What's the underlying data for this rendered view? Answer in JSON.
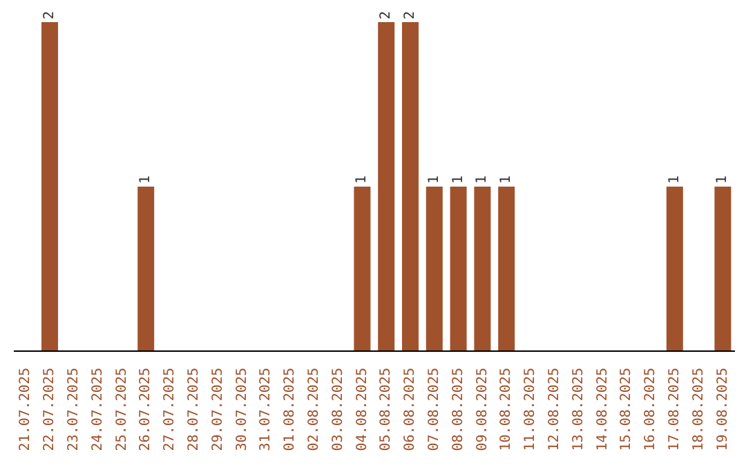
{
  "chart_data": {
    "type": "bar",
    "categories": [
      "21.07.2025",
      "22.07.2025",
      "23.07.2025",
      "24.07.2025",
      "25.07.2025",
      "26.07.2025",
      "27.07.2025",
      "28.07.2025",
      "29.07.2025",
      "30.07.2025",
      "31.07.2025",
      "01.08.2025",
      "02.08.2025",
      "03.08.2025",
      "04.08.2025",
      "05.08.2025",
      "06.08.2025",
      "07.08.2025",
      "08.08.2025",
      "09.08.2025",
      "10.08.2025",
      "11.08.2025",
      "12.08.2025",
      "13.08.2025",
      "14.08.2025",
      "15.08.2025",
      "16.08.2025",
      "17.08.2025",
      "18.08.2025",
      "19.08.2025"
    ],
    "values": [
      0,
      2,
      0,
      0,
      0,
      1,
      0,
      0,
      0,
      0,
      0,
      0,
      0,
      0,
      1,
      2,
      2,
      1,
      1,
      1,
      1,
      0,
      0,
      0,
      0,
      0,
      0,
      1,
      0,
      1
    ],
    "value_labels": [
      null,
      "2",
      null,
      null,
      null,
      "1",
      null,
      null,
      null,
      null,
      null,
      null,
      null,
      null,
      "1",
      "2",
      "2",
      "1",
      "1",
      "1",
      "1",
      null,
      null,
      null,
      null,
      null,
      null,
      "1",
      null,
      "1"
    ],
    "color": "#a0522d",
    "tick_labels": "x",
    "grid": false,
    "legend": false
  }
}
